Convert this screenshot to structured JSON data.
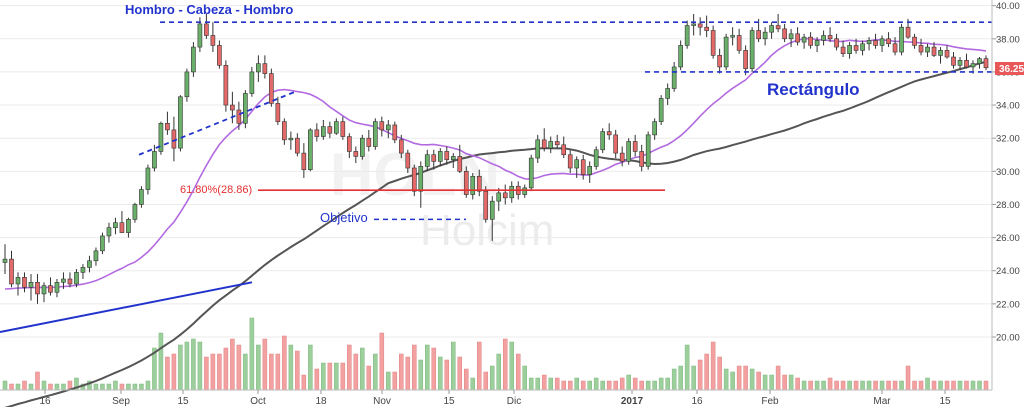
{
  "chart_data": {
    "type": "candlestick",
    "symbol": "HOLN",
    "watermark_text": "Holcim",
    "price_label": "36.25",
    "yaxis": {
      "ticks": [
        "20.00",
        "22.00",
        "24.00",
        "26.00",
        "28.00",
        "30.00",
        "32.00",
        "34.00",
        "36.00",
        "38.00",
        "40.00"
      ],
      "range": [
        16.8,
        40.1
      ]
    },
    "xaxis": {
      "ticks": [
        "16",
        "Sep",
        "15",
        "Oct",
        "18",
        "Nov",
        "15",
        "Dic",
        "2017",
        "16",
        "Feb",
        "Mar",
        "15"
      ]
    },
    "annotations": {
      "pattern_label": "Hombro - Cabeza - Hombro",
      "rectangle_label": "Rectángulo",
      "fib_label": "61.80%(28.86)",
      "target_label": "Objetivo",
      "fib_level": 28.86,
      "neckline_level": 39.0,
      "rectangle_top": 39.0,
      "rectangle_bottom": 36.0,
      "target_level": 27.1
    },
    "colors": {
      "up": "#6ab06a",
      "down": "#e46a6a",
      "sma_fast": "#b36ae0",
      "sma_slow": "#555555",
      "annotation_blue": "#2233cc",
      "fib_red": "#e53030",
      "price_label_bg": "#e85858"
    },
    "ohlc": [
      [
        24.5,
        25.6,
        23.8,
        24.7
      ],
      [
        24.7,
        25.2,
        23.0,
        23.2
      ],
      [
        23.2,
        23.9,
        22.5,
        23.6
      ],
      [
        23.6,
        23.9,
        22.7,
        23.0
      ],
      [
        23.0,
        23.8,
        22.2,
        23.3
      ],
      [
        23.3,
        23.8,
        22.0,
        22.6
      ],
      [
        22.6,
        23.3,
        22.1,
        23.1
      ],
      [
        23.1,
        23.6,
        22.5,
        22.7
      ],
      [
        22.7,
        23.5,
        22.4,
        23.3
      ],
      [
        23.3,
        23.9,
        22.9,
        23.5
      ],
      [
        23.5,
        23.9,
        23.0,
        23.2
      ],
      [
        23.2,
        24.1,
        23.0,
        23.9
      ],
      [
        23.9,
        24.4,
        23.5,
        24.2
      ],
      [
        24.2,
        24.9,
        23.9,
        24.6
      ],
      [
        24.6,
        25.4,
        24.3,
        25.2
      ],
      [
        25.2,
        26.3,
        25.0,
        26.1
      ],
      [
        26.1,
        26.9,
        25.7,
        26.6
      ],
      [
        26.6,
        27.2,
        26.2,
        26.9
      ],
      [
        26.9,
        27.6,
        26.5,
        26.3
      ],
      [
        26.3,
        27.2,
        26.0,
        27.1
      ],
      [
        27.1,
        28.1,
        26.9,
        28.0
      ],
      [
        28.0,
        29.1,
        27.8,
        28.9
      ],
      [
        28.9,
        30.4,
        28.6,
        30.2
      ],
      [
        30.2,
        31.6,
        30.0,
        31.2
      ],
      [
        31.2,
        33.0,
        31.0,
        32.9
      ],
      [
        32.9,
        33.6,
        32.2,
        32.5
      ],
      [
        32.5,
        33.3,
        30.6,
        31.4
      ],
      [
        31.4,
        34.6,
        31.2,
        34.5
      ],
      [
        34.5,
        36.2,
        34.2,
        36.0
      ],
      [
        36.0,
        37.8,
        35.7,
        37.5
      ],
      [
        37.5,
        39.3,
        37.2,
        38.9
      ],
      [
        38.9,
        39.5,
        38.0,
        38.2
      ],
      [
        38.2,
        39.0,
        37.2,
        37.6
      ],
      [
        37.6,
        37.9,
        36.2,
        36.4
      ],
      [
        36.4,
        36.7,
        33.6,
        34.0
      ],
      [
        34.0,
        34.8,
        32.9,
        33.7
      ],
      [
        33.7,
        34.2,
        32.5,
        32.9
      ],
      [
        32.9,
        34.9,
        32.6,
        34.7
      ],
      [
        34.7,
        36.3,
        34.5,
        36.0
      ],
      [
        36.0,
        37.0,
        35.4,
        36.5
      ],
      [
        36.5,
        37.0,
        35.6,
        35.9
      ],
      [
        35.9,
        36.2,
        33.9,
        34.1
      ],
      [
        34.1,
        34.5,
        32.8,
        33.0
      ],
      [
        33.0,
        33.2,
        31.6,
        31.9
      ],
      [
        31.9,
        32.4,
        31.3,
        32.0
      ],
      [
        32.0,
        32.3,
        30.9,
        31.1
      ],
      [
        31.1,
        31.7,
        29.6,
        30.1
      ],
      [
        30.1,
        32.6,
        30.0,
        32.5
      ],
      [
        32.5,
        32.9,
        31.8,
        32.1
      ],
      [
        32.1,
        33.1,
        31.9,
        32.7
      ],
      [
        32.7,
        33.0,
        32.0,
        32.3
      ],
      [
        32.3,
        33.2,
        32.2,
        33.0
      ],
      [
        33.0,
        33.3,
        31.9,
        32.1
      ],
      [
        32.1,
        32.3,
        30.8,
        31.2
      ],
      [
        31.2,
        31.5,
        30.5,
        30.9
      ],
      [
        30.9,
        32.2,
        30.7,
        32.0
      ],
      [
        32.0,
        32.5,
        31.2,
        31.5
      ],
      [
        31.5,
        33.2,
        31.3,
        33.0
      ],
      [
        33.0,
        33.3,
        32.1,
        32.5
      ],
      [
        32.5,
        33.1,
        32.0,
        32.8
      ],
      [
        32.8,
        33.0,
        31.7,
        31.9
      ],
      [
        31.9,
        32.2,
        30.8,
        31.1
      ],
      [
        31.1,
        31.3,
        29.9,
        30.2
      ],
      [
        30.2,
        30.4,
        28.5,
        28.8
      ],
      [
        28.8,
        30.6,
        27.8,
        30.3
      ],
      [
        30.3,
        31.3,
        30.0,
        31.0
      ],
      [
        31.0,
        31.3,
        30.1,
        30.6
      ],
      [
        30.6,
        31.4,
        30.3,
        31.2
      ],
      [
        31.2,
        31.5,
        30.4,
        30.7
      ],
      [
        30.7,
        31.1,
        30.2,
        30.9
      ],
      [
        30.9,
        31.6,
        29.9,
        30.0
      ],
      [
        30.0,
        30.3,
        28.4,
        28.6
      ],
      [
        28.6,
        29.9,
        28.3,
        29.7
      ],
      [
        29.7,
        30.1,
        28.5,
        28.8
      ],
      [
        28.8,
        29.1,
        26.9,
        27.1
      ],
      [
        27.1,
        28.5,
        25.8,
        28.2
      ],
      [
        28.2,
        29.0,
        27.6,
        28.7
      ],
      [
        28.7,
        29.2,
        28.0,
        28.4
      ],
      [
        28.4,
        29.4,
        28.1,
        29.1
      ],
      [
        29.1,
        29.4,
        28.3,
        28.6
      ],
      [
        28.6,
        29.2,
        28.4,
        29.0
      ],
      [
        29.0,
        31.0,
        28.8,
        30.8
      ],
      [
        30.8,
        32.2,
        30.5,
        31.9
      ],
      [
        31.9,
        32.6,
        31.2,
        31.4
      ],
      [
        31.4,
        32.1,
        31.1,
        31.8
      ],
      [
        31.8,
        32.2,
        31.4,
        31.6
      ],
      [
        31.6,
        32.1,
        30.8,
        31.0
      ],
      [
        31.0,
        31.3,
        29.9,
        30.2
      ],
      [
        30.2,
        30.9,
        29.6,
        30.7
      ],
      [
        30.7,
        31.0,
        29.5,
        29.8
      ],
      [
        29.8,
        30.6,
        29.3,
        30.3
      ],
      [
        30.3,
        31.5,
        30.1,
        31.3
      ],
      [
        31.3,
        32.6,
        31.1,
        32.4
      ],
      [
        32.4,
        32.9,
        31.9,
        32.2
      ],
      [
        32.2,
        32.5,
        30.8,
        31.1
      ],
      [
        31.1,
        31.5,
        30.3,
        30.6
      ],
      [
        30.6,
        32.0,
        30.4,
        31.8
      ],
      [
        31.8,
        32.2,
        30.9,
        31.2
      ],
      [
        31.2,
        31.6,
        30.0,
        30.3
      ],
      [
        30.3,
        32.4,
        30.1,
        32.2
      ],
      [
        32.2,
        33.2,
        31.9,
        33.0
      ],
      [
        33.0,
        34.6,
        32.8,
        34.4
      ],
      [
        34.4,
        35.3,
        34.0,
        35.0
      ],
      [
        35.0,
        36.6,
        34.8,
        36.3
      ],
      [
        36.3,
        37.9,
        36.1,
        37.6
      ],
      [
        37.6,
        39.1,
        37.4,
        38.8
      ],
      [
        38.8,
        39.5,
        38.2,
        38.9
      ],
      [
        38.9,
        39.3,
        38.2,
        38.7
      ],
      [
        38.7,
        39.4,
        38.1,
        38.5
      ],
      [
        38.5,
        38.8,
        36.8,
        37.0
      ],
      [
        37.0,
        37.4,
        35.9,
        36.3
      ],
      [
        36.3,
        38.3,
        36.1,
        38.1
      ],
      [
        38.1,
        38.7,
        37.6,
        38.2
      ],
      [
        38.2,
        38.6,
        37.1,
        37.3
      ],
      [
        37.3,
        37.6,
        35.8,
        36.2
      ],
      [
        36.2,
        38.7,
        36.0,
        38.5
      ],
      [
        38.5,
        39.2,
        37.8,
        38.0
      ],
      [
        38.0,
        38.7,
        37.6,
        38.4
      ],
      [
        38.4,
        39.0,
        38.0,
        38.8
      ],
      [
        38.8,
        39.5,
        38.4,
        38.6
      ],
      [
        38.6,
        38.9,
        37.8,
        38.0
      ],
      [
        38.0,
        38.6,
        37.5,
        38.3
      ],
      [
        38.3,
        38.7,
        37.6,
        37.8
      ],
      [
        37.8,
        38.3,
        37.4,
        38.1
      ],
      [
        38.1,
        38.4,
        37.4,
        37.6
      ],
      [
        37.6,
        38.1,
        37.2,
        37.9
      ],
      [
        37.9,
        38.5,
        37.6,
        38.2
      ],
      [
        38.2,
        38.7,
        37.8,
        38.0
      ],
      [
        38.0,
        38.3,
        37.3,
        37.5
      ],
      [
        37.5,
        37.9,
        36.9,
        37.1
      ],
      [
        37.1,
        37.8,
        36.8,
        37.6
      ],
      [
        37.6,
        38.0,
        37.1,
        37.3
      ],
      [
        37.3,
        37.9,
        37.0,
        37.7
      ],
      [
        37.7,
        38.1,
        37.3,
        37.9
      ],
      [
        37.9,
        38.3,
        37.4,
        37.6
      ],
      [
        37.6,
        38.2,
        37.2,
        38.0
      ],
      [
        38.0,
        38.4,
        37.5,
        37.7
      ],
      [
        37.7,
        38.1,
        37.0,
        37.2
      ],
      [
        37.2,
        38.9,
        37.0,
        38.7
      ],
      [
        38.7,
        39.2,
        38.0,
        38.1
      ],
      [
        38.1,
        38.3,
        37.4,
        37.6
      ],
      [
        37.6,
        38.0,
        37.0,
        37.2
      ],
      [
        37.2,
        37.7,
        36.9,
        37.5
      ],
      [
        37.5,
        37.8,
        36.9,
        37.0
      ],
      [
        37.0,
        37.5,
        36.5,
        37.3
      ],
      [
        37.3,
        37.6,
        36.8,
        36.9
      ],
      [
        36.9,
        37.2,
        36.2,
        36.4
      ],
      [
        36.4,
        36.9,
        36.1,
        36.7
      ],
      [
        36.7,
        37.1,
        36.2,
        36.3
      ],
      [
        36.3,
        36.7,
        35.9,
        36.5
      ],
      [
        36.5,
        36.9,
        36.2,
        36.8
      ],
      [
        36.8,
        37.0,
        36.1,
        36.25
      ]
    ],
    "volume": [
      3,
      2,
      2,
      3,
      2,
      6,
      3,
      2,
      2,
      2,
      3,
      4,
      2,
      3,
      2,
      2,
      2,
      3,
      2,
      2,
      2,
      2,
      3,
      14,
      19,
      11,
      12,
      15,
      16,
      17,
      16,
      11,
      12,
      12,
      14,
      17,
      15,
      12,
      24,
      15,
      17,
      12,
      12,
      18,
      15,
      13,
      5,
      15,
      7,
      9,
      9,
      9,
      9,
      15,
      12,
      14,
      8,
      12,
      19,
      6,
      6,
      12,
      11,
      15,
      10,
      15,
      14,
      11,
      10,
      16,
      11,
      7,
      4,
      16,
      6,
      8,
      12,
      17,
      16,
      12,
      8,
      4,
      4,
      5,
      4,
      4,
      3,
      3,
      4,
      3,
      3,
      4,
      3,
      3,
      3,
      4,
      5,
      4,
      3,
      3,
      3,
      4,
      4,
      7,
      8,
      15,
      8,
      10,
      12,
      16,
      11,
      7,
      6,
      8,
      8,
      7,
      6,
      5,
      5,
      8,
      5,
      5,
      4,
      3,
      3,
      3,
      3,
      4,
      3,
      3,
      3,
      3,
      3,
      3,
      3,
      3,
      3,
      3,
      3,
      8,
      3,
      3,
      4,
      3,
      3,
      3,
      3,
      3,
      3,
      3,
      3,
      3,
      3,
      3,
      3,
      3
    ]
  }
}
